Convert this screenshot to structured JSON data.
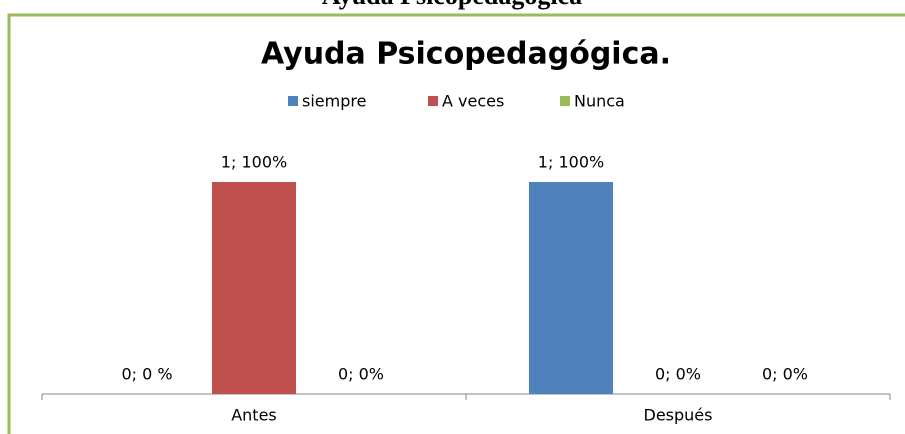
{
  "heading": "Ayuda Psicopedagógica",
  "chart_data": {
    "type": "bar",
    "title": "Ayuda Psicopedagógica.",
    "categories": [
      "Antes",
      "Después"
    ],
    "series": [
      {
        "name": "siempre",
        "color": "#4f81bd",
        "values": [
          0,
          1
        ],
        "value_labels": [
          "0; 0 %",
          "1; 100%"
        ]
      },
      {
        "name": "A veces",
        "color": "#c0504d",
        "values": [
          1,
          0
        ],
        "value_labels": [
          "1; 100%",
          "0; 0%"
        ]
      },
      {
        "name": "Nunca",
        "color": "#9bbb59",
        "values": [
          0,
          0
        ],
        "value_labels": [
          "0; 0%",
          "0; 0%"
        ]
      }
    ],
    "ylim": [
      0,
      1
    ],
    "legend": "top"
  }
}
